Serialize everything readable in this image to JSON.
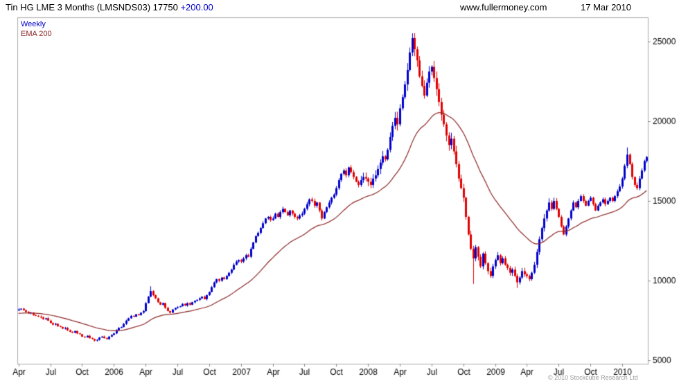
{
  "header": {
    "title": "Tin HG LME 3 Months (LMSNDS03)",
    "price": "17750",
    "change": "+200.00",
    "website": "www.fullermoney.com",
    "date": "17 Mar 2010"
  },
  "legend": {
    "series": "Weekly",
    "overlay": "EMA 200"
  },
  "footer": {
    "copyright": "© 2010 Stockcube Research Ltd"
  },
  "colors": {
    "up": "#0000cc",
    "down": "#e00000",
    "ema": "#8b2222",
    "axis_border": "#aaaaaa",
    "tick": "#888888",
    "label": "#000000",
    "change": "#0000cc",
    "copyright": "#9a9a9a"
  },
  "chart_data": {
    "type": "candlestick",
    "title": "Tin HG LME 3 Months (LMSNDS03)",
    "frequency": "weekly",
    "start_label": "Apr 2005",
    "end_label": "17 Mar 2010",
    "last_price": 17750,
    "change": 200.0,
    "overlay": "EMA 200",
    "ema_start": 7950,
    "grid": false,
    "legend_position": "top-left",
    "ylim": [
      4800,
      26500
    ],
    "y_ticks": [
      5000,
      10000,
      15000,
      20000,
      25000
    ],
    "x_tick_indices": [
      0,
      13,
      26,
      39,
      52,
      65,
      78,
      91,
      104,
      117,
      130,
      143,
      156,
      169,
      182,
      195,
      208,
      221,
      234,
      247
    ],
    "x_tick_labels": [
      "Apr",
      "Jul",
      "Oct",
      "2006",
      "Apr",
      "Jul",
      "Oct",
      "2007",
      "Apr",
      "Jul",
      "Oct",
      "2008",
      "Apr",
      "Jul",
      "Oct",
      "2009",
      "Apr",
      "Jul",
      "Oct",
      "2010"
    ],
    "closes": [
      8200,
      8250,
      8150,
      8050,
      7950,
      8000,
      7850,
      7800,
      7750,
      7700,
      7600,
      7650,
      7500,
      7350,
      7250,
      7300,
      7150,
      7100,
      7000,
      7050,
      6900,
      6800,
      6750,
      6850,
      6700,
      6650,
      6500,
      6450,
      6550,
      6400,
      6350,
      6250,
      6300,
      6450,
      6500,
      6400,
      6350,
      6500,
      6600,
      6700,
      6900,
      7050,
      7100,
      7300,
      7500,
      7650,
      7800,
      7750,
      7900,
      7850,
      8000,
      8100,
      8600,
      9000,
      9350,
      9100,
      8900,
      8650,
      8500,
      8600,
      8300,
      8100,
      8000,
      8200,
      8300,
      8350,
      8400,
      8550,
      8450,
      8600,
      8500,
      8650,
      8750,
      8800,
      8900,
      9000,
      8850,
      9100,
      9300,
      9600,
      9900,
      10100,
      10000,
      10200,
      10100,
      10300,
      10500,
      10700,
      11000,
      11200,
      11300,
      11200,
      11400,
      11600,
      11500,
      12000,
      12400,
      12800,
      13000,
      13300,
      13600,
      13900,
      14000,
      13800,
      13900,
      14200,
      14000,
      14300,
      14500,
      14300,
      14100,
      14400,
      14200,
      14000,
      13900,
      14100,
      14200,
      14500,
      14800,
      15100,
      15000,
      14700,
      14900,
      14400,
      13900,
      14300,
      14600,
      14900,
      15200,
      15400,
      15800,
      16300,
      16700,
      16900,
      16600,
      17100,
      16800,
      16500,
      16200,
      16000,
      16300,
      16500,
      16400,
      16200,
      16000,
      16400,
      16600,
      17000,
      17400,
      17800,
      17600,
      18200,
      19000,
      19700,
      20200,
      19800,
      20800,
      21500,
      22300,
      23200,
      24300,
      25200,
      24500,
      23800,
      22800,
      22200,
      21600,
      22400,
      23100,
      23400,
      22700,
      22000,
      21200,
      20400,
      19800,
      19100,
      18500,
      18900,
      18100,
      17300,
      16400,
      15800,
      15200,
      14000,
      12900,
      12000,
      11400,
      12100,
      11500,
      10900,
      11700,
      11100,
      10600,
      10300,
      10900,
      11300,
      11600,
      11100,
      11400,
      11000,
      10800,
      10500,
      10700,
      10300,
      9900,
      10200,
      10600,
      10400,
      10300,
      10100,
      10500,
      11000,
      11800,
      12600,
      13300,
      13900,
      14400,
      14900,
      14500,
      15000,
      14500,
      14000,
      13400,
      12900,
      13400,
      13900,
      14400,
      14900,
      14600,
      15000,
      15300,
      15000,
      14700,
      15000,
      15200,
      14800,
      14400,
      14700,
      14900,
      15100,
      14800,
      15000,
      15200,
      15000,
      15300,
      15600,
      15900,
      16400,
      17200,
      17900,
      17300,
      16500,
      16000,
      15800,
      16400,
      16900,
      17500,
      17750
    ],
    "wick_overrides": {
      "54": {
        "hi": 9650
      },
      "161": {
        "hi": 25500
      },
      "186": {
        "lo": 9800
      },
      "204": {
        "lo": 9550
      },
      "249": {
        "hi": 18350
      }
    }
  }
}
